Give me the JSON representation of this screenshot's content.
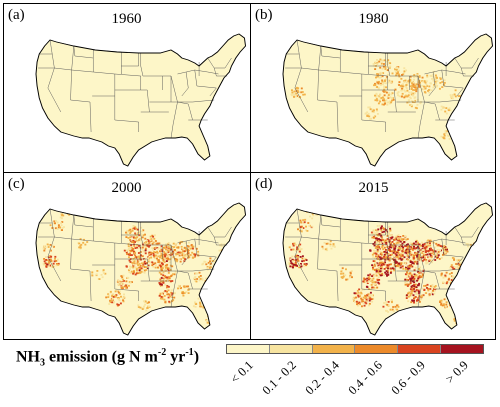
{
  "panels": [
    {
      "label": "(a)",
      "title": "1960",
      "level": 0
    },
    {
      "label": "(b)",
      "title": "1980",
      "level": 1
    },
    {
      "label": "(c)",
      "title": "2000",
      "level": 2
    },
    {
      "label": "(d)",
      "title": "2015",
      "level": 3
    }
  ],
  "legend": {
    "title_prefix": "NH",
    "title_sub": "3",
    "title_main": " emission (g N m",
    "title_sup1": "-2",
    "title_mid": " yr",
    "title_sup2": "-1",
    "title_suffix": ")",
    "classes": [
      "< 0.1",
      "0.1 - 0.2",
      "0.2 - 0.4",
      "0.4 - 0.6",
      "0.6 - 0.9",
      "> 0.9"
    ],
    "colors": [
      "#fdf6c8",
      "#f7e4a0",
      "#f2b24a",
      "#ec8a2a",
      "#d9431f",
      "#a5131f"
    ]
  }
}
